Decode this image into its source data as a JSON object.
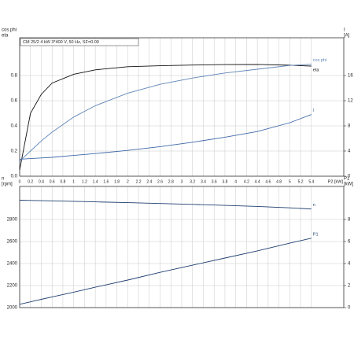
{
  "chart_data": [
    {
      "type": "line",
      "header": "CM 25/2  4 kW  3*400 V, 50 Hz, SF=0.00",
      "y_label": [
        "cos phi",
        "eta"
      ],
      "y2_label": [
        "I",
        "[A]"
      ],
      "x_label": "P2 [kW]",
      "xlim": [
        0,
        6.0
      ],
      "xticks": [
        0,
        0.2,
        0.4,
        0.6,
        0.8,
        1,
        1.2,
        1.4,
        1.6,
        1.8,
        2,
        2.2,
        2.4,
        2.6,
        2.8,
        3,
        3.2,
        3.4,
        3.6,
        3.8,
        4,
        4.2,
        4.4,
        4.6,
        4.8,
        5,
        5.2,
        5.4
      ],
      "ylim": [
        0,
        1.1
      ],
      "yticks": [
        {
          "value": 0,
          "label": "0.0"
        },
        0.2,
        0.4,
        0.6,
        0.8
      ],
      "y2lim": [
        0,
        22
      ],
      "y2ticks": [
        0,
        4,
        8,
        12,
        16
      ],
      "x": [
        0,
        0.2,
        0.4,
        0.6,
        1,
        1.4,
        2,
        2.6,
        3.2,
        3.8,
        4.4,
        5,
        5.4
      ],
      "series": [
        {
          "name": "eta",
          "color": "#111111",
          "values": [
            0.05,
            0.5,
            0.65,
            0.74,
            0.81,
            0.845,
            0.87,
            0.878,
            0.883,
            0.887,
            0.888,
            0.882,
            0.875
          ]
        },
        {
          "name": "cos phi",
          "color": "#5f86b8",
          "values": [
            0.12,
            0.2,
            0.28,
            0.35,
            0.47,
            0.56,
            0.66,
            0.73,
            0.78,
            0.82,
            0.85,
            0.88,
            0.89
          ]
        },
        {
          "name": "I",
          "color": "#3f68a8",
          "axis": "y2",
          "values": [
            2.7,
            2.8,
            2.9,
            3.0,
            3.3,
            3.6,
            4.1,
            4.7,
            5.4,
            6.2,
            7.1,
            8.5,
            9.8
          ]
        }
      ]
    },
    {
      "type": "line",
      "y_label": [
        "n",
        "[rpm]"
      ],
      "y2_label": [
        "P1",
        "[kW]"
      ],
      "xlim": [
        0,
        6.0
      ],
      "ylim": [
        2000,
        3100
      ],
      "yticks": [
        2000,
        2200,
        2400,
        2600,
        2800
      ],
      "y2lim": [
        0,
        11
      ],
      "y2ticks": [
        0,
        2,
        4,
        6,
        8
      ],
      "x": [
        0,
        0.2,
        0.4,
        0.6,
        1,
        1.4,
        2,
        2.6,
        3.2,
        3.8,
        4.4,
        5,
        5.4
      ],
      "series": [
        {
          "name": "n",
          "color": "#1f3f70",
          "values": [
            2975,
            2973,
            2971,
            2969,
            2965,
            2960,
            2953,
            2945,
            2937,
            2928,
            2918,
            2906,
            2895
          ]
        },
        {
          "name": "P1",
          "color": "#1f3f70",
          "axis": "y2",
          "values": [
            0.3,
            0.52,
            0.75,
            0.97,
            1.4,
            1.85,
            2.5,
            3.2,
            3.85,
            4.5,
            5.15,
            5.85,
            6.3
          ]
        }
      ]
    }
  ]
}
